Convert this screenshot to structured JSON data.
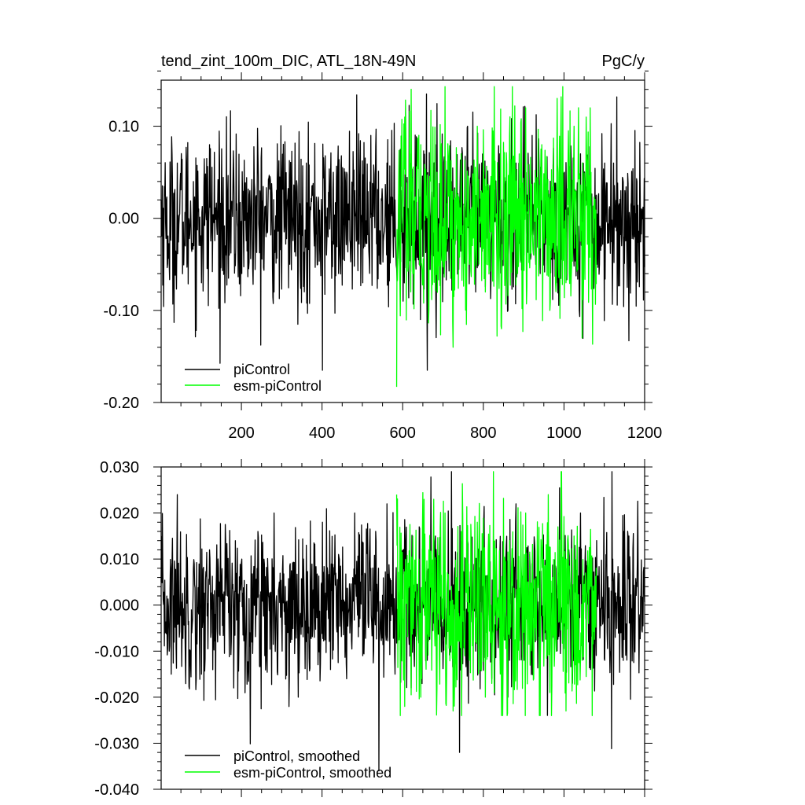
{
  "header": {
    "title": "tend_zint_100m_DIC, ATL_18N-49N",
    "units": "PgC/y"
  },
  "colors": {
    "piControl": "#000000",
    "esm_piControl": "#00ff00",
    "frame": "#000000",
    "background": "#ffffff"
  },
  "chart_data": [
    {
      "type": "line",
      "title": "tend_zint_100m_DIC, ATL_18N-49N",
      "units": "PgC/y",
      "xlim": [
        1,
        1200
      ],
      "ylim": [
        -0.2,
        0.15
      ],
      "x_ticks": [
        200,
        400,
        600,
        800,
        1000,
        1200
      ],
      "x_tick_labels": [
        "200",
        "400",
        "600",
        "800",
        "1000",
        "1200"
      ],
      "y_ticks": [
        -0.2,
        -0.1,
        0.0,
        0.1
      ],
      "y_tick_labels": [
        "-0.20",
        "-0.10",
        "0.00",
        "0.10"
      ],
      "legend_placement": "bottom-left",
      "grid": false,
      "series": [
        {
          "name": "piControl",
          "color": "#000000",
          "x_start": 1,
          "x_end": 1200,
          "approx_mean": 0.0,
          "approx_range": [
            -0.165,
            0.137
          ],
          "values_sampled_every_20": [
            0.02,
            -0.05,
            0.06,
            -0.03,
            0.04,
            -0.07,
            0.08,
            0.01,
            -0.04,
            0.05,
            -0.06,
            0.03,
            0.07,
            -0.02,
            -0.08,
            0.05,
            0.02,
            -0.05,
            0.06,
            -0.03,
            -0.165,
            0.04,
            -0.06,
            0.05,
            0.03,
            -0.07,
            0.09,
            -0.04,
            0.06,
            0.02,
            -0.09,
            0.07,
            -0.05,
            -0.166,
            0.08,
            -0.06,
            0.04,
            -0.03,
            0.1,
            -0.08,
            0.05,
            -0.02,
            0.07,
            -0.1,
            0.06,
            -0.04,
            0.09,
            -0.06,
            0.03,
            -0.07,
            0.05,
            -0.03,
            0.07,
            0.01,
            -0.05,
            0.06,
            -0.04,
            0.03,
            -0.133,
            0.04
          ]
        },
        {
          "name": "esm-piControl",
          "color": "#00ff00",
          "x_start": 585,
          "x_end": 1080,
          "approx_mean": 0.0,
          "approx_range": [
            -0.183,
            0.143
          ],
          "values_sampled_every_20": [
            -0.183,
            0.11,
            -0.06,
            0.08,
            -0.1,
            0.05,
            0.143,
            -0.14,
            0.07,
            -0.05,
            0.1,
            -0.08,
            0.06,
            -0.12,
            0.09,
            -0.06,
            0.12,
            -0.04,
            0.08,
            -0.1,
            0.05,
            -0.07,
            0.1,
            -0.13,
            0.12
          ]
        }
      ]
    },
    {
      "type": "line",
      "title": "",
      "xlim": [
        1,
        1200
      ],
      "ylim": [
        -0.04,
        0.03
      ],
      "x_ticks": [
        200,
        400,
        600,
        800,
        1000,
        1200
      ],
      "y_ticks": [
        -0.04,
        -0.03,
        -0.02,
        -0.01,
        0.0,
        0.01,
        0.02,
        0.03
      ],
      "y_tick_labels": [
        "-0.040",
        "-0.030",
        "-0.020",
        "-0.010",
        "0.000",
        "0.010",
        "0.020",
        "0.030"
      ],
      "legend_placement": "bottom-left",
      "grid": false,
      "series": [
        {
          "name": "piControl, smoothed",
          "color": "#000000",
          "x_start": 1,
          "x_end": 1200,
          "approx_mean": 0.0,
          "approx_range": [
            -0.036,
            0.029
          ],
          "values_sampled_every_20": [
            0.005,
            -0.01,
            0.024,
            -0.012,
            0.008,
            -0.015,
            0.012,
            -0.008,
            0.014,
            -0.018,
            0.01,
            -0.006,
            0.016,
            -0.012,
            0.02,
            -0.01,
            0.009,
            -0.02,
            0.013,
            -0.007,
            0.018,
            -0.014,
            0.011,
            -0.016,
            0.02,
            -0.011,
            0.008,
            -0.036,
            0.022,
            -0.015,
            0.012,
            -0.018,
            0.017,
            -0.012,
            0.015,
            -0.008,
            0.029,
            -0.032,
            0.014,
            -0.01,
            0.018,
            -0.016,
            0.011,
            -0.02,
            0.022,
            -0.012,
            0.009,
            -0.015,
            0.016,
            -0.01,
            0.012,
            -0.017,
            0.02,
            -0.008,
            0.014,
            -0.012,
            0.01,
            -0.006,
            0.015,
            0.004
          ]
        },
        {
          "name": "esm-piControl, smoothed",
          "color": "#00ff00",
          "x_start": 585,
          "x_end": 1080,
          "approx_mean": 0.0,
          "approx_range": [
            -0.024,
            0.029
          ],
          "values_sampled_every_20": [
            0.024,
            -0.022,
            0.015,
            -0.02,
            0.012,
            -0.018,
            0.02,
            -0.023,
            0.016,
            -0.012,
            0.018,
            -0.02,
            0.029,
            -0.024,
            0.014,
            -0.01,
            0.02,
            -0.016,
            0.012,
            -0.019,
            0.017,
            -0.023,
            0.015,
            -0.012,
            0.01
          ]
        }
      ]
    }
  ]
}
